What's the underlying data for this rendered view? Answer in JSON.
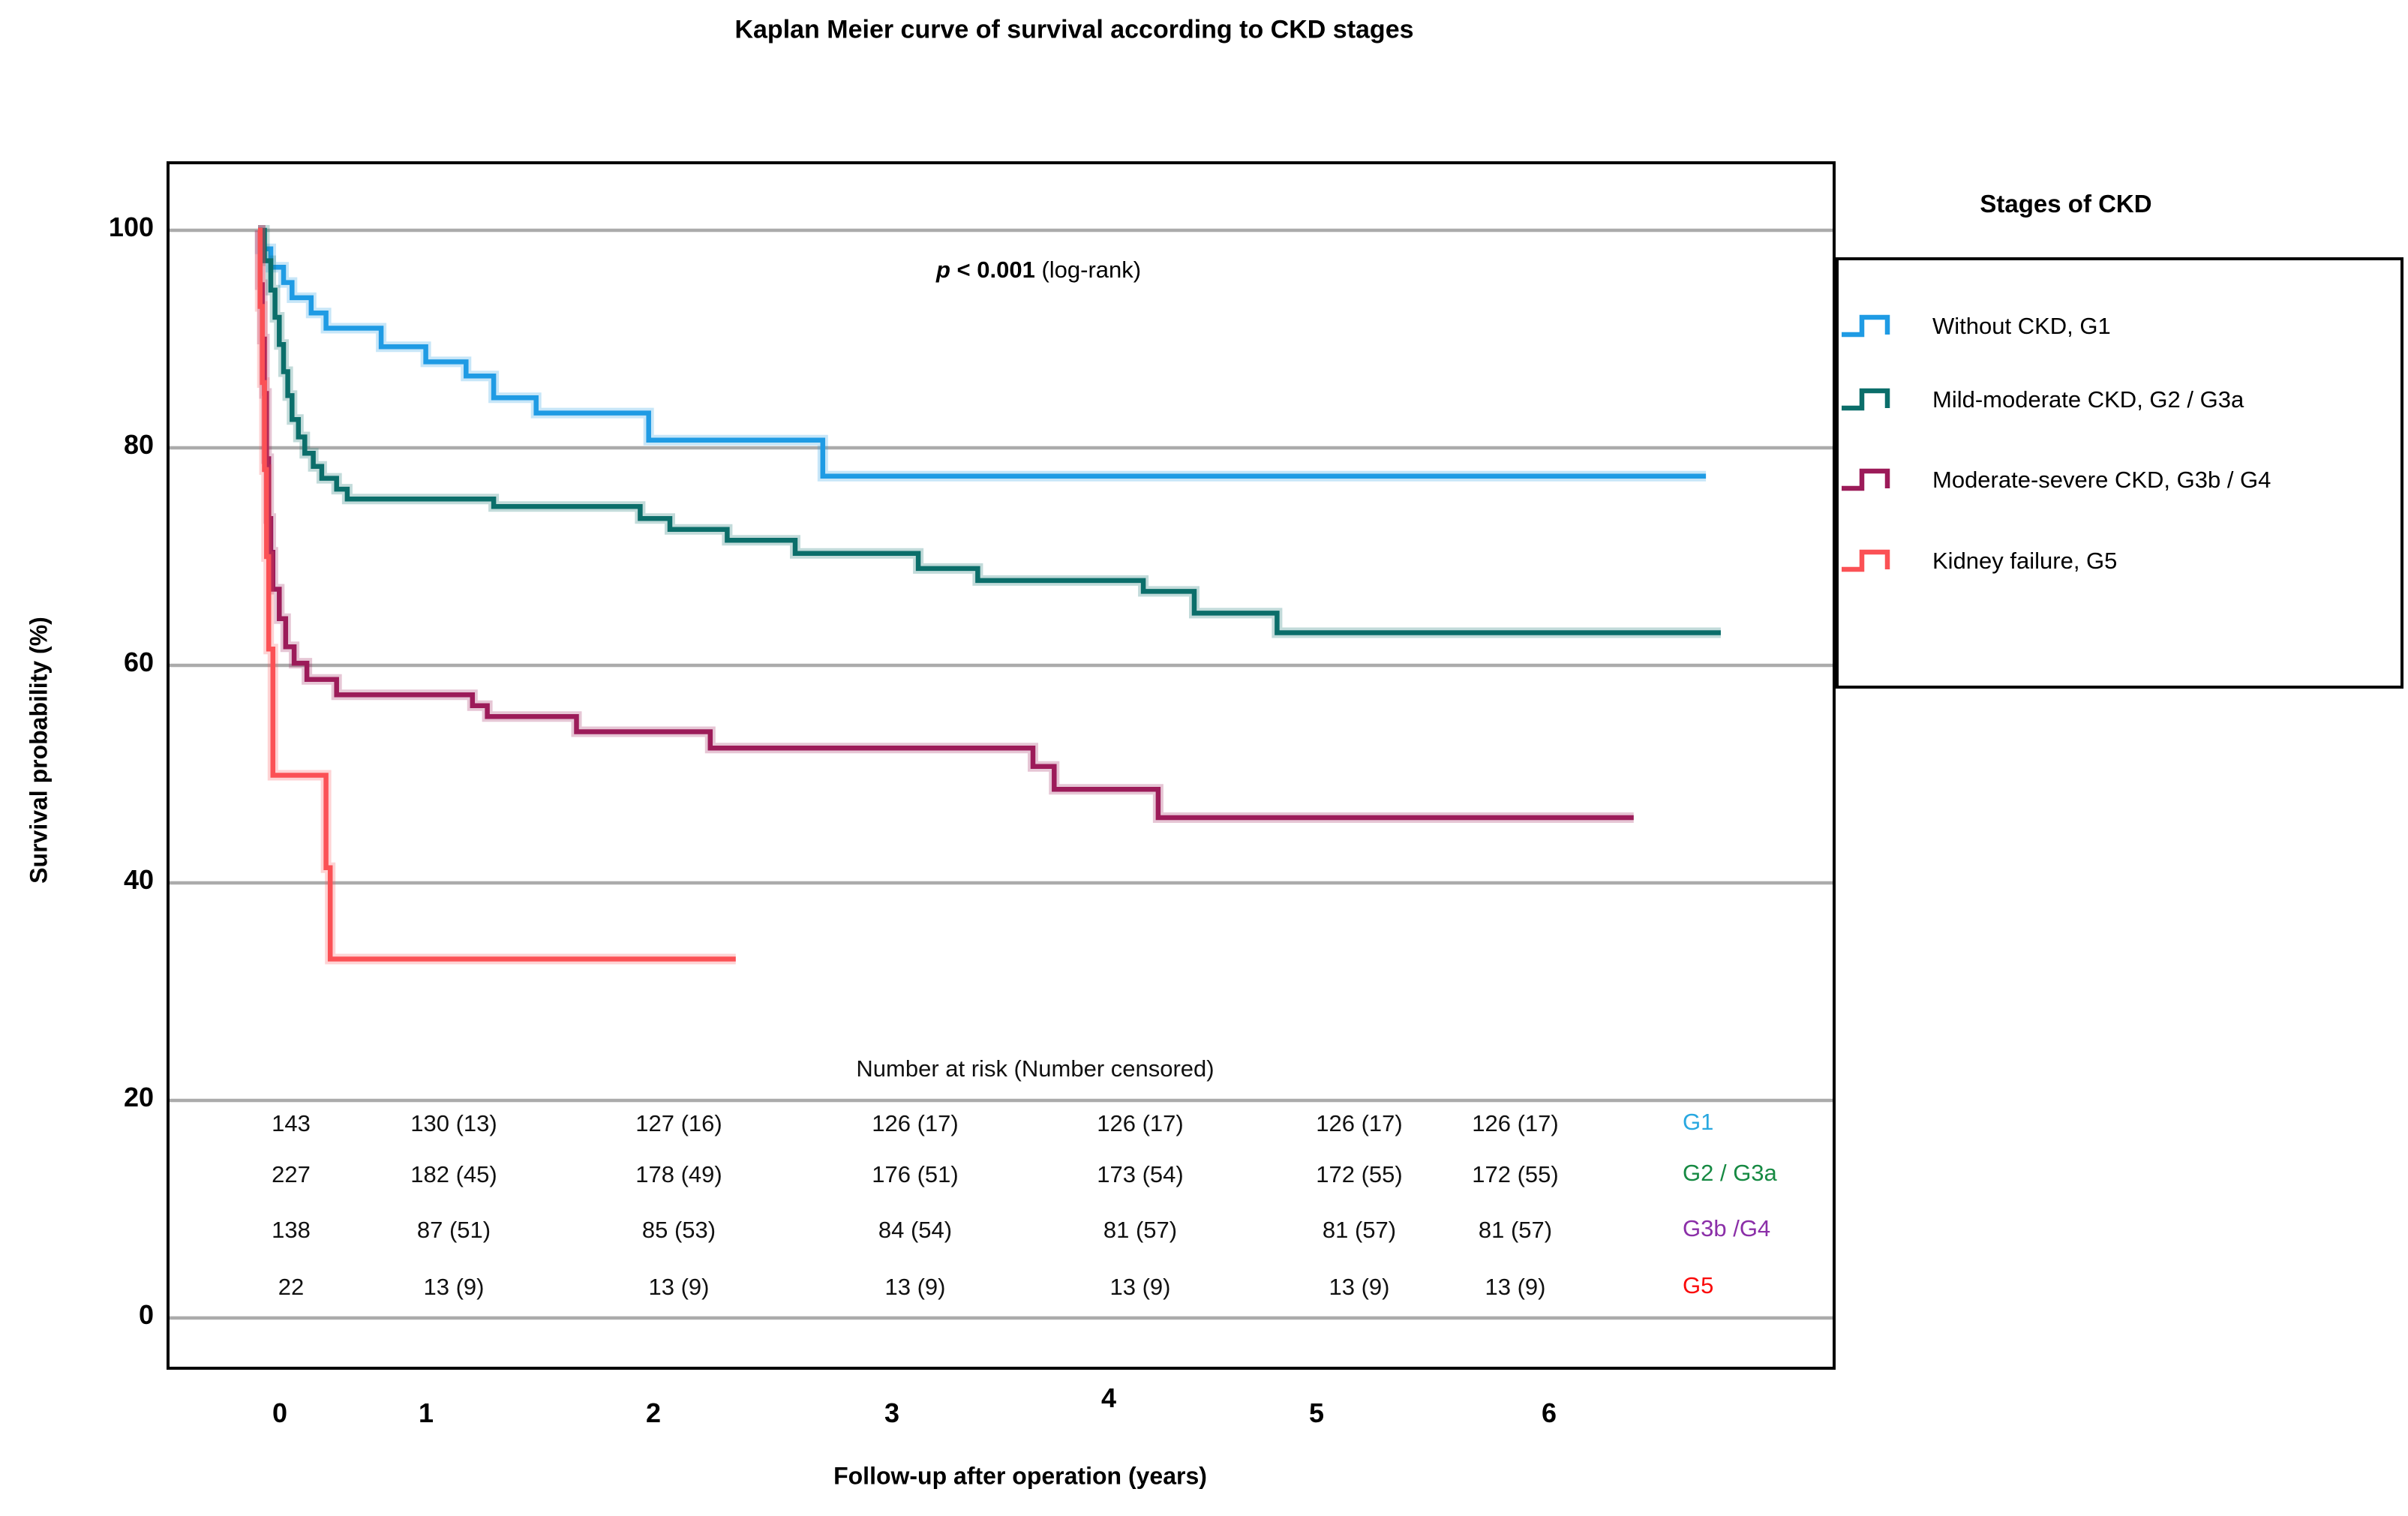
{
  "title": "Kaplan Meier curve of survival according to CKD stages",
  "axes": {
    "y_label": "Survival probability (%)",
    "x_label": "Follow-up after operation (years)",
    "y_ticks": [
      "100",
      "80",
      "60",
      "40",
      "20",
      "0"
    ],
    "x_ticks": [
      "0",
      "1",
      "2",
      "3",
      "4",
      "5",
      "6"
    ]
  },
  "annotation": {
    "p_symbol": "p",
    "p_value": " < 0.001",
    "p_test": " (log-rank)"
  },
  "legend": {
    "title": "Stages of CKD",
    "items": [
      {
        "label": "Without CKD, G1",
        "color": "#1F9BE4"
      },
      {
        "label": "Mild-moderate CKD, G2 / G3a",
        "color": "#0B6E6A"
      },
      {
        "label": "Moderate-severe CKD, G3b / G4",
        "color": "#9C1B59"
      },
      {
        "label": "Kidney failure, G5",
        "color": "#FB5155"
      }
    ]
  },
  "risk_table": {
    "header": "Number at risk (Number censored)",
    "rows": [
      {
        "label": "G1",
        "label_color": "#29A8E0",
        "values": [
          "143",
          "130 (13)",
          "127 (16)",
          "126 (17)",
          "126 (17)",
          "126 (17)",
          "126 (17)"
        ]
      },
      {
        "label": "G2 / G3a",
        "label_color": "#178A43",
        "values": [
          "227",
          "182 (45)",
          "178 (49)",
          "176 (51)",
          "173 (54)",
          "172 (55)",
          "172 (55)"
        ]
      },
      {
        "label": "G3b /G4",
        "label_color": "#8B2FA8",
        "values": [
          "138",
          "87 (51)",
          "85 (53)",
          "84 (54)",
          "81 (57)",
          "81 (57)",
          "81 (57)"
        ]
      },
      {
        "label": "G5",
        "label_color": "#FA0A0A",
        "values": [
          "22",
          "13 (9)",
          "13 (9)",
          "13 (9)",
          "13 (9)",
          "13 (9)",
          "13 (9)"
        ]
      }
    ]
  },
  "chart_data": {
    "type": "line",
    "subtype": "kaplan-meier-step",
    "title": "Kaplan Meier curve of survival according to CKD stages",
    "xlabel": "Follow-up after operation (years)",
    "ylabel": "Survival probability (%)",
    "xlim": [
      0,
      7.4
    ],
    "ylim": [
      0,
      100
    ],
    "grid": "horizontal",
    "legend_position": "right",
    "p_value_annotation": "p < 0.001 (log-rank)",
    "series": [
      {
        "name": "Without CKD, G1",
        "color": "#1F9BE4",
        "end_x": 6.82,
        "points": [
          [
            0,
            100
          ],
          [
            0.01,
            98.3
          ],
          [
            0.06,
            96.6
          ],
          [
            0.12,
            95.2
          ],
          [
            0.16,
            93.8
          ],
          [
            0.25,
            92.4
          ],
          [
            0.32,
            91.0
          ],
          [
            0.58,
            89.3
          ],
          [
            0.79,
            87.9
          ],
          [
            0.98,
            86.6
          ],
          [
            1.11,
            84.6
          ],
          [
            1.31,
            83.2
          ],
          [
            1.84,
            80.7
          ],
          [
            2.66,
            77.4
          ]
        ]
      },
      {
        "name": "Mild-moderate CKD, G2 / G3a",
        "color": "#0B6E6A",
        "end_x": 6.89,
        "points": [
          [
            0,
            100
          ],
          [
            0.03,
            97.2
          ],
          [
            0.06,
            94.5
          ],
          [
            0.08,
            92.0
          ],
          [
            0.1,
            89.5
          ],
          [
            0.12,
            87.0
          ],
          [
            0.14,
            84.8
          ],
          [
            0.16,
            82.6
          ],
          [
            0.19,
            81.0
          ],
          [
            0.22,
            79.5
          ],
          [
            0.26,
            78.3
          ],
          [
            0.3,
            77.2
          ],
          [
            0.37,
            76.2
          ],
          [
            0.42,
            75.3
          ],
          [
            1.11,
            74.6
          ],
          [
            1.8,
            73.5
          ],
          [
            1.94,
            72.5
          ],
          [
            2.21,
            71.5
          ],
          [
            2.53,
            70.3
          ],
          [
            3.11,
            68.9
          ],
          [
            3.39,
            67.8
          ],
          [
            4.17,
            66.8
          ],
          [
            4.41,
            64.8
          ],
          [
            4.8,
            63.0
          ]
        ]
      },
      {
        "name": "Moderate-severe CKD, G3b / G4",
        "color": "#9C1B59",
        "end_x": 6.48,
        "points": [
          [
            0,
            100
          ],
          [
            0.01,
            95.0
          ],
          [
            0.02,
            90.0
          ],
          [
            0.03,
            85.0
          ],
          [
            0.04,
            79.0
          ],
          [
            0.05,
            73.5
          ],
          [
            0.06,
            70.4
          ],
          [
            0.07,
            67.0
          ],
          [
            0.1,
            64.3
          ],
          [
            0.13,
            61.7
          ],
          [
            0.17,
            60.2
          ],
          [
            0.23,
            58.7
          ],
          [
            0.37,
            57.3
          ],
          [
            1.01,
            56.3
          ],
          [
            1.08,
            55.3
          ],
          [
            1.5,
            53.9
          ],
          [
            2.13,
            52.4
          ],
          [
            3.65,
            50.7
          ],
          [
            3.75,
            48.6
          ],
          [
            4.24,
            46.0
          ]
        ]
      },
      {
        "name": "Kidney failure, G5",
        "color": "#FB5155",
        "end_x": 2.25,
        "points": [
          [
            0,
            100
          ],
          [
            0.01,
            93.0
          ],
          [
            0.02,
            86.0
          ],
          [
            0.03,
            78.0
          ],
          [
            0.04,
            70.0
          ],
          [
            0.05,
            61.5
          ],
          [
            0.07,
            49.9
          ],
          [
            0.32,
            41.4
          ],
          [
            0.34,
            33.0
          ]
        ]
      }
    ]
  }
}
